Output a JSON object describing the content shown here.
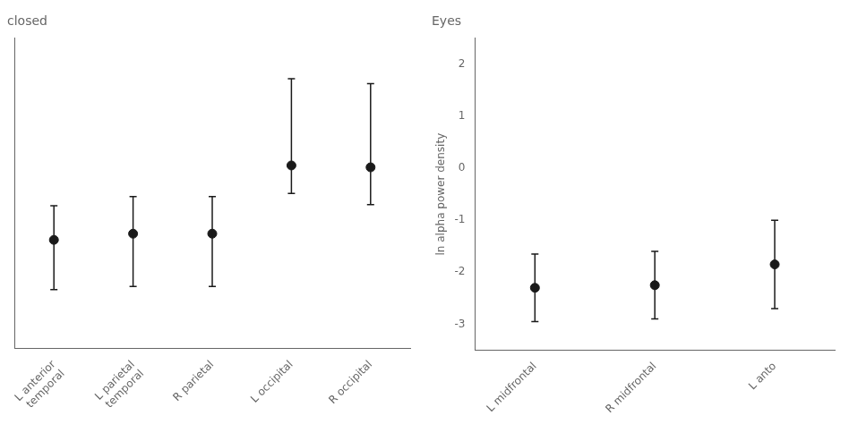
{
  "chart_data": [
    {
      "type": "scatter",
      "title": "closed",
      "categories": [
        "L anterior\ntemporal",
        "L parietal\ntemporal",
        "R parietal",
        "L occipital",
        "R occipital"
      ],
      "values": [
        -0.75,
        -0.65,
        -0.65,
        0.45,
        0.42
      ],
      "error_lower": [
        0.8,
        0.85,
        0.85,
        0.45,
        0.6
      ],
      "error_upper": [
        0.55,
        0.6,
        0.6,
        1.4,
        1.35
      ],
      "ylim": [
        -2.5,
        2.5
      ],
      "tick_labels": "x",
      "grid": false,
      "color": "#1a1a1a",
      "marker": "circle"
    },
    {
      "type": "scatter",
      "title": "Eyes",
      "categories": [
        "L midfrontal",
        "R midfrontal",
        "L anto"
      ],
      "values": [
        -2.3,
        -2.25,
        -1.85
      ],
      "error_lower": [
        0.65,
        0.65,
        0.85
      ],
      "error_upper": [
        0.65,
        0.65,
        0.85
      ],
      "ylim": [
        -3.5,
        2.5
      ],
      "yticks": [
        -3,
        -2,
        -1,
        0,
        1,
        2
      ],
      "ylabel": "ln alpha power density",
      "grid": false,
      "color": "#1a1a1a",
      "marker": "circle"
    }
  ]
}
